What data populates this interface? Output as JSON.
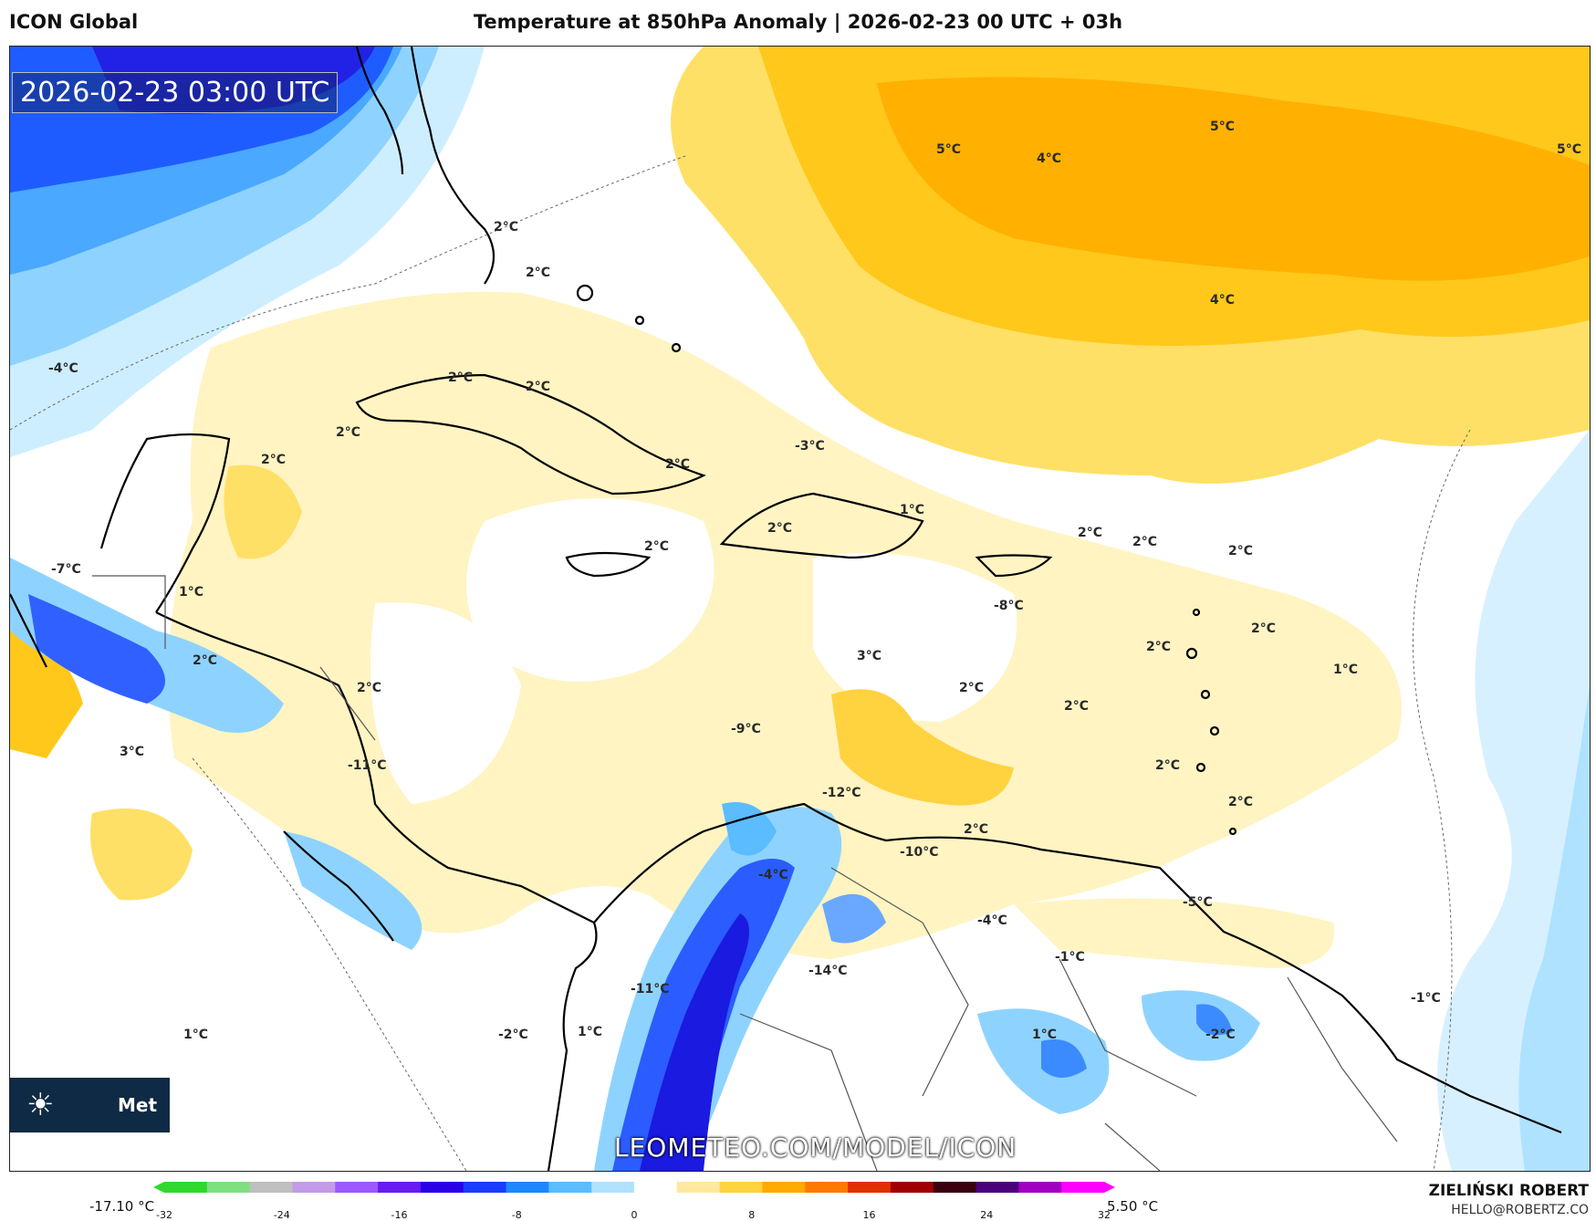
{
  "header": {
    "model": "ICON Global",
    "title": "Temperature at 850hPa Anomaly | 2026-02-23 00 UTC + 03h"
  },
  "map": {
    "timestamp": "2026-02-23 03:00 UTC",
    "watermark": "LEOMETEO.COM/MODEL/ICON",
    "logo_text": "Met",
    "contour_labels": [
      "5°C",
      "4°C",
      "5°C",
      "5°C",
      "4°C",
      "2°C",
      "2°C",
      "-4°C",
      "2°C",
      "2°C",
      "2°C",
      "2°C",
      "2°C",
      "-3°C",
      "1°C",
      "2°C",
      "2°C",
      "2°C",
      "2°C",
      "2°C",
      "-8°C",
      "-7°C",
      "1°C",
      "2°C",
      "2°C",
      "3°C",
      "2°C",
      "2°C",
      "1°C",
      "2°C",
      "2°C",
      "3°C",
      "-9°C",
      "-11°C",
      "-12°C",
      "2°C",
      "2°C",
      "2°C",
      "-10°C",
      "-4°C",
      "-5°C",
      "-4°C",
      "-1°C",
      "-14°C",
      "-11°C",
      "1°C",
      "1°C",
      "-2°C",
      "1°C",
      "-2°C",
      "-1°C"
    ]
  },
  "colorbar": {
    "min_label": "-17.10 °C",
    "max_label": "5.50 °C",
    "ticks": [
      "-32",
      "-24",
      "-16",
      "-8",
      "0",
      "8",
      "16",
      "24",
      "32"
    ],
    "colors": [
      "#2fd82f",
      "#7fe07f",
      "#bfbfbf",
      "#c39be6",
      "#9b59ff",
      "#6a1bf0",
      "#2b00e6",
      "#1a3cff",
      "#1e88ff",
      "#5bbcff",
      "#aee2ff",
      "#ffffff",
      "#ffe9a0",
      "#ffd23f",
      "#ffaa00",
      "#ff7a00",
      "#e03000",
      "#a00000",
      "#3a0010",
      "#4b007a",
      "#a000c0",
      "#ff00ff"
    ]
  },
  "credits": {
    "author": "ZIELIŃSKI ROBERT",
    "email": "HELLO@ROBERTZ.CO"
  }
}
